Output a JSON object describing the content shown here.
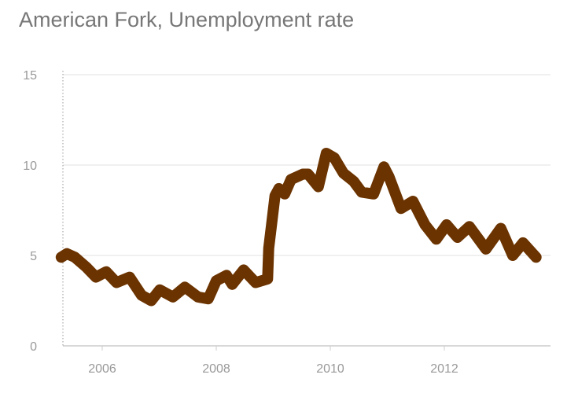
{
  "chart_data": {
    "type": "line",
    "title": "American Fork, Unemployment rate",
    "xlabel": "",
    "ylabel": "",
    "ylim": [
      0,
      15
    ],
    "yticks": [
      "0",
      "5",
      "10",
      "15"
    ],
    "xticks": [
      "2006",
      "2008",
      "2010",
      "2012"
    ],
    "grid": true,
    "line_color": "#6b3300",
    "series": [
      {
        "name": "Unemployment rate",
        "x": [
          2005.28,
          2005.38,
          2005.52,
          2005.72,
          2005.89,
          2006.07,
          2006.25,
          2006.48,
          2006.69,
          2006.86,
          2007.01,
          2007.24,
          2007.45,
          2007.68,
          2007.86,
          2008.0,
          2008.18,
          2008.28,
          2008.48,
          2008.69,
          2008.9,
          2008.92,
          2008.97,
          2009.03,
          2009.1,
          2009.2,
          2009.31,
          2009.52,
          2009.61,
          2009.79,
          2009.93,
          2010.07,
          2010.23,
          2010.41,
          2010.55,
          2010.76,
          2010.94,
          2011.03,
          2011.24,
          2011.45,
          2011.66,
          2011.86,
          2012.04,
          2012.23,
          2012.44,
          2012.73,
          2012.99,
          2013.2,
          2013.38,
          2013.61
        ],
        "values": [
          4.9,
          5.1,
          4.9,
          4.35,
          3.8,
          4.1,
          3.5,
          3.8,
          2.8,
          2.5,
          3.1,
          2.7,
          3.25,
          2.7,
          2.6,
          3.6,
          3.9,
          3.4,
          4.2,
          3.5,
          3.7,
          5.4,
          6.7,
          8.3,
          8.7,
          8.4,
          9.2,
          9.5,
          9.5,
          8.8,
          10.65,
          10.4,
          9.55,
          9.1,
          8.5,
          8.4,
          9.9,
          9.35,
          7.6,
          8.0,
          6.7,
          5.9,
          6.7,
          6.0,
          6.6,
          5.35,
          6.5,
          5.0,
          5.7,
          4.9
        ]
      }
    ]
  }
}
